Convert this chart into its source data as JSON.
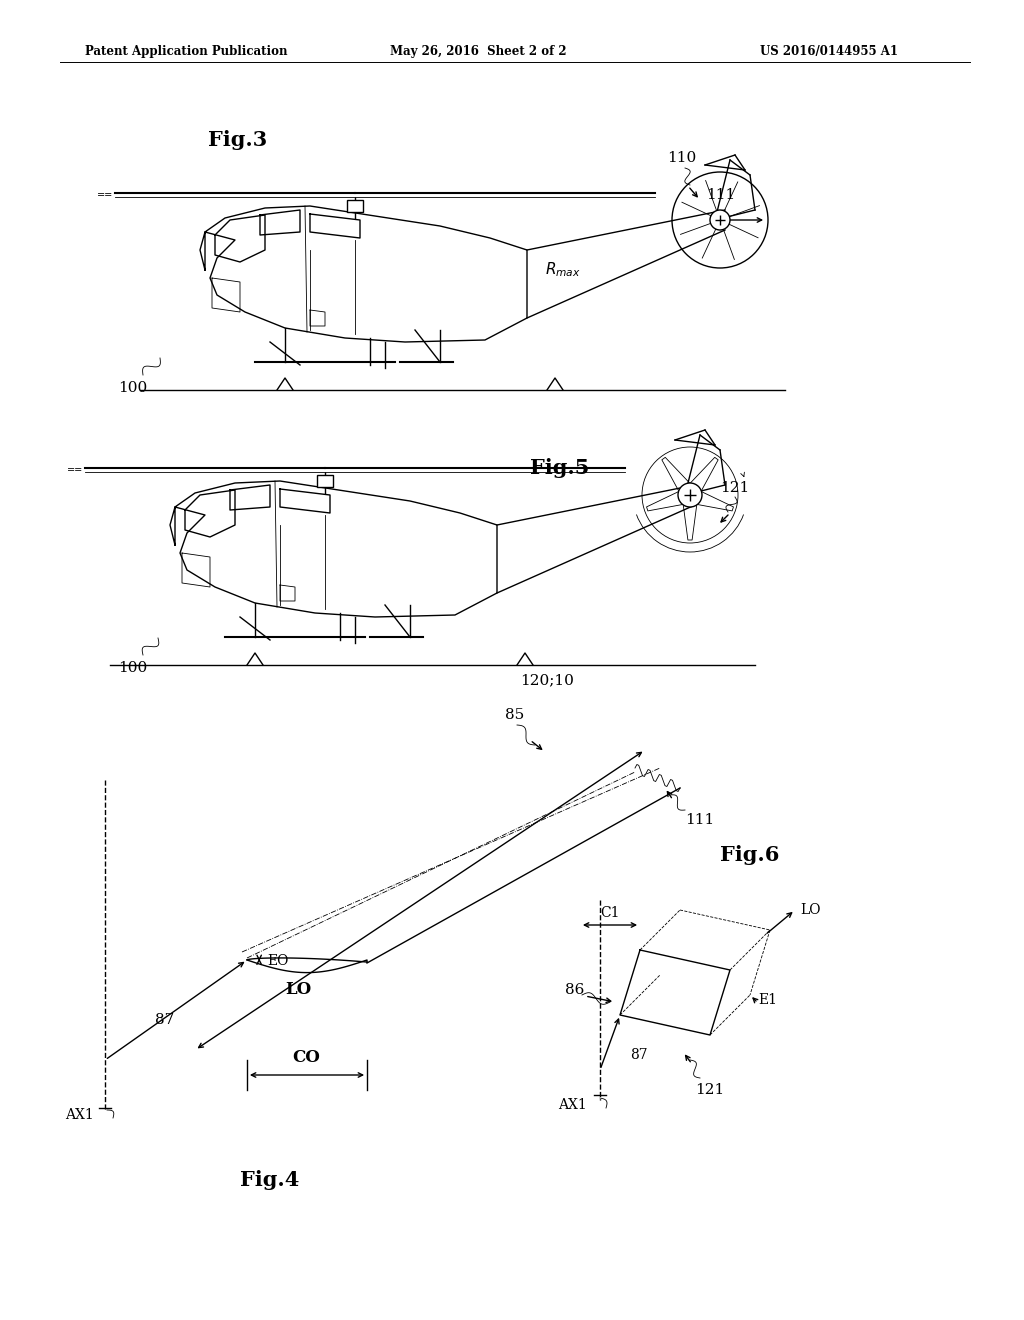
{
  "background_color": "#ffffff",
  "header_left": "Patent Application Publication",
  "header_center": "May 26, 2016  Sheet 2 of 2",
  "header_right": "US 2016/0144955 A1",
  "fig3_label": "Fig.3",
  "fig5_label": "Fig.5",
  "fig4_label": "Fig.4",
  "fig6_label": "Fig.6",
  "label_100_fig3": "100",
  "label_110": "110",
  "label_111_fig3": "111",
  "label_rmax": "$R_{max}$",
  "label_100_fig5": "100",
  "label_120_10": "120;10",
  "label_121_fig5": "121",
  "label_lo_fig4": "LO",
  "label_eo": "EO",
  "label_85": "85",
  "label_111_fig4": "111",
  "label_87_fig4": "87",
  "label_co": "CO",
  "label_ax1_fig4": "AX1",
  "label_c1": "C1",
  "label_86": "86",
  "label_lo_fig6": "LO",
  "label_87_fig6": "87",
  "label_e1": "E1",
  "label_ax1_fig6": "AX1",
  "label_121_fig6": "121"
}
